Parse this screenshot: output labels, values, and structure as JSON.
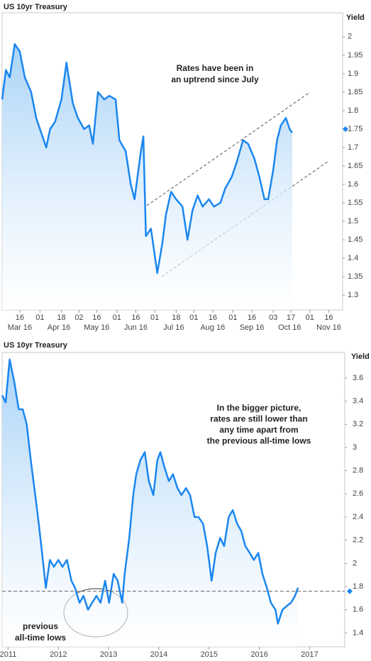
{
  "chart_data": [
    {
      "type": "line",
      "title": "US 10yr Treasury",
      "y_axis_label": "Yield",
      "annotation": [
        "Rates have been in",
        "an uptrend since July"
      ],
      "color": "#1a86f0",
      "current": 1.75,
      "xlim": [
        "2016-03-02",
        "2016-11-27"
      ],
      "ylim": [
        1.26,
        2.065
      ],
      "yticks": [
        1.3,
        1.35,
        1.4,
        1.45,
        1.5,
        1.55,
        1.6,
        1.65,
        1.7,
        1.75,
        1.8,
        1.85,
        1.9,
        1.95,
        2
      ],
      "xticks": [
        {
          "value": "2016-03-16",
          "label": "16"
        },
        {
          "value": "2016-04-01",
          "label": "01"
        },
        {
          "value": "2016-04-18",
          "label": "18"
        },
        {
          "value": "2016-05-02",
          "label": "02"
        },
        {
          "value": "2016-05-16",
          "label": "16"
        },
        {
          "value": "2016-06-01",
          "label": "01"
        },
        {
          "value": "2016-06-16",
          "label": "16"
        },
        {
          "value": "2016-07-01",
          "label": "01"
        },
        {
          "value": "2016-07-18",
          "label": "18"
        },
        {
          "value": "2016-08-01",
          "label": "01"
        },
        {
          "value": "2016-08-16",
          "label": "16"
        },
        {
          "value": "2016-09-01",
          "label": "01"
        },
        {
          "value": "2016-09-16",
          "label": "16"
        },
        {
          "value": "2016-10-03",
          "label": "03"
        },
        {
          "value": "2016-10-17",
          "label": "17"
        },
        {
          "value": "2016-11-01",
          "label": "01"
        },
        {
          "value": "2016-11-16",
          "label": "16"
        }
      ],
      "month_labels": [
        {
          "value": "2016-03-16",
          "label": "Mar 16"
        },
        {
          "value": "2016-04-16",
          "label": "Apr 16"
        },
        {
          "value": "2016-05-16",
          "label": "May 16"
        },
        {
          "value": "2016-06-16",
          "label": "Jun 16"
        },
        {
          "value": "2016-07-16",
          "label": "Jul 16"
        },
        {
          "value": "2016-08-16",
          "label": "Aug 16"
        },
        {
          "value": "2016-09-16",
          "label": "Sep 16"
        },
        {
          "value": "2016-10-16",
          "label": "Oct 16"
        },
        {
          "value": "2016-11-16",
          "label": "Nov 16"
        }
      ],
      "x": [
        "2016-03-02",
        "2016-03-05",
        "2016-03-08",
        "2016-03-12",
        "2016-03-16",
        "2016-03-20",
        "2016-03-25",
        "2016-03-29",
        "2016-04-02",
        "2016-04-06",
        "2016-04-09",
        "2016-04-13",
        "2016-04-18",
        "2016-04-22",
        "2016-04-27",
        "2016-05-01",
        "2016-05-06",
        "2016-05-10",
        "2016-05-13",
        "2016-05-17",
        "2016-05-22",
        "2016-05-26",
        "2016-05-31",
        "2016-06-03",
        "2016-06-08",
        "2016-06-12",
        "2016-06-15",
        "2016-06-20",
        "2016-06-22",
        "2016-06-24",
        "2016-06-28",
        "2016-07-03",
        "2016-07-07",
        "2016-07-10",
        "2016-07-14",
        "2016-07-18",
        "2016-07-23",
        "2016-07-27",
        "2016-07-31",
        "2016-08-04",
        "2016-08-08",
        "2016-08-13",
        "2016-08-17",
        "2016-08-22",
        "2016-08-26",
        "2016-08-31",
        "2016-09-04",
        "2016-09-09",
        "2016-09-13",
        "2016-09-18",
        "2016-09-22",
        "2016-09-26",
        "2016-09-29",
        "2016-10-03",
        "2016-10-06",
        "2016-10-09",
        "2016-10-13",
        "2016-10-16",
        "2016-10-18"
      ],
      "values": [
        1.83,
        1.91,
        1.89,
        1.98,
        1.96,
        1.89,
        1.85,
        1.78,
        1.74,
        1.7,
        1.75,
        1.77,
        1.83,
        1.93,
        1.82,
        1.78,
        1.75,
        1.76,
        1.71,
        1.85,
        1.83,
        1.84,
        1.83,
        1.72,
        1.69,
        1.6,
        1.56,
        1.69,
        1.73,
        1.46,
        1.48,
        1.36,
        1.44,
        1.52,
        1.58,
        1.56,
        1.54,
        1.45,
        1.53,
        1.57,
        1.54,
        1.56,
        1.54,
        1.55,
        1.59,
        1.62,
        1.66,
        1.72,
        1.71,
        1.67,
        1.62,
        1.56,
        1.56,
        1.64,
        1.72,
        1.76,
        1.78,
        1.75,
        1.74
      ]
    },
    {
      "type": "line",
      "title": "US 10yr Treasury",
      "y_axis_label": "Yield",
      "annotation": [
        "In the bigger picture,",
        "rates are still lower than",
        "any time apart from",
        "the previous all-time lows"
      ],
      "callout": [
        "previous",
        "all-time lows"
      ],
      "color": "#1a86f0",
      "current": 1.76,
      "xlim": [
        2010.88,
        2017.7
      ],
      "ylim": [
        1.28,
        3.82
      ],
      "yticks": [
        1.4,
        1.6,
        1.8,
        2,
        2.2,
        2.4,
        2.6,
        2.8,
        3,
        3.2,
        3.4,
        3.6
      ],
      "xticks": [
        2011,
        2012,
        2013,
        2014,
        2015,
        2016,
        2017
      ],
      "x": [
        2010.88,
        2010.95,
        2011.03,
        2011.12,
        2011.21,
        2011.29,
        2011.37,
        2011.45,
        2011.54,
        2011.61,
        2011.69,
        2011.75,
        2011.83,
        2011.91,
        2012.0,
        2012.08,
        2012.17,
        2012.26,
        2012.33,
        2012.42,
        2012.5,
        2012.59,
        2012.67,
        2012.76,
        2012.84,
        2012.93,
        2013.01,
        2013.1,
        2013.18,
        2013.27,
        2013.32,
        2013.41,
        2013.49,
        2013.55,
        2013.63,
        2013.72,
        2013.8,
        2013.89,
        2013.97,
        2014.03,
        2014.11,
        2014.2,
        2014.28,
        2014.37,
        2014.45,
        2014.54,
        2014.62,
        2014.71,
        2014.79,
        2014.88,
        2014.96,
        2015.05,
        2015.13,
        2015.22,
        2015.3,
        2015.39,
        2015.47,
        2015.56,
        2015.64,
        2015.72,
        2015.81,
        2015.89,
        2015.98,
        2016.06,
        2016.15,
        2016.23,
        2016.32,
        2016.37,
        2016.46,
        2016.54,
        2016.63,
        2016.71,
        2016.77
      ],
      "values": [
        3.45,
        3.39,
        3.76,
        3.57,
        3.33,
        3.33,
        3.2,
        2.89,
        2.59,
        2.34,
        2.03,
        1.79,
        2.03,
        1.97,
        2.03,
        1.97,
        2.03,
        1.85,
        1.79,
        1.66,
        1.72,
        1.6,
        1.66,
        1.72,
        1.66,
        1.85,
        1.66,
        1.91,
        1.85,
        1.66,
        1.91,
        2.22,
        2.59,
        2.77,
        2.89,
        2.96,
        2.71,
        2.59,
        2.89,
        2.96,
        2.83,
        2.71,
        2.77,
        2.65,
        2.59,
        2.65,
        2.59,
        2.4,
        2.4,
        2.34,
        2.15,
        1.85,
        2.09,
        2.22,
        2.15,
        2.4,
        2.46,
        2.34,
        2.28,
        2.15,
        2.09,
        2.03,
        2.09,
        1.91,
        1.79,
        1.66,
        1.6,
        1.48,
        1.6,
        1.63,
        1.66,
        1.72,
        1.79
      ]
    }
  ]
}
